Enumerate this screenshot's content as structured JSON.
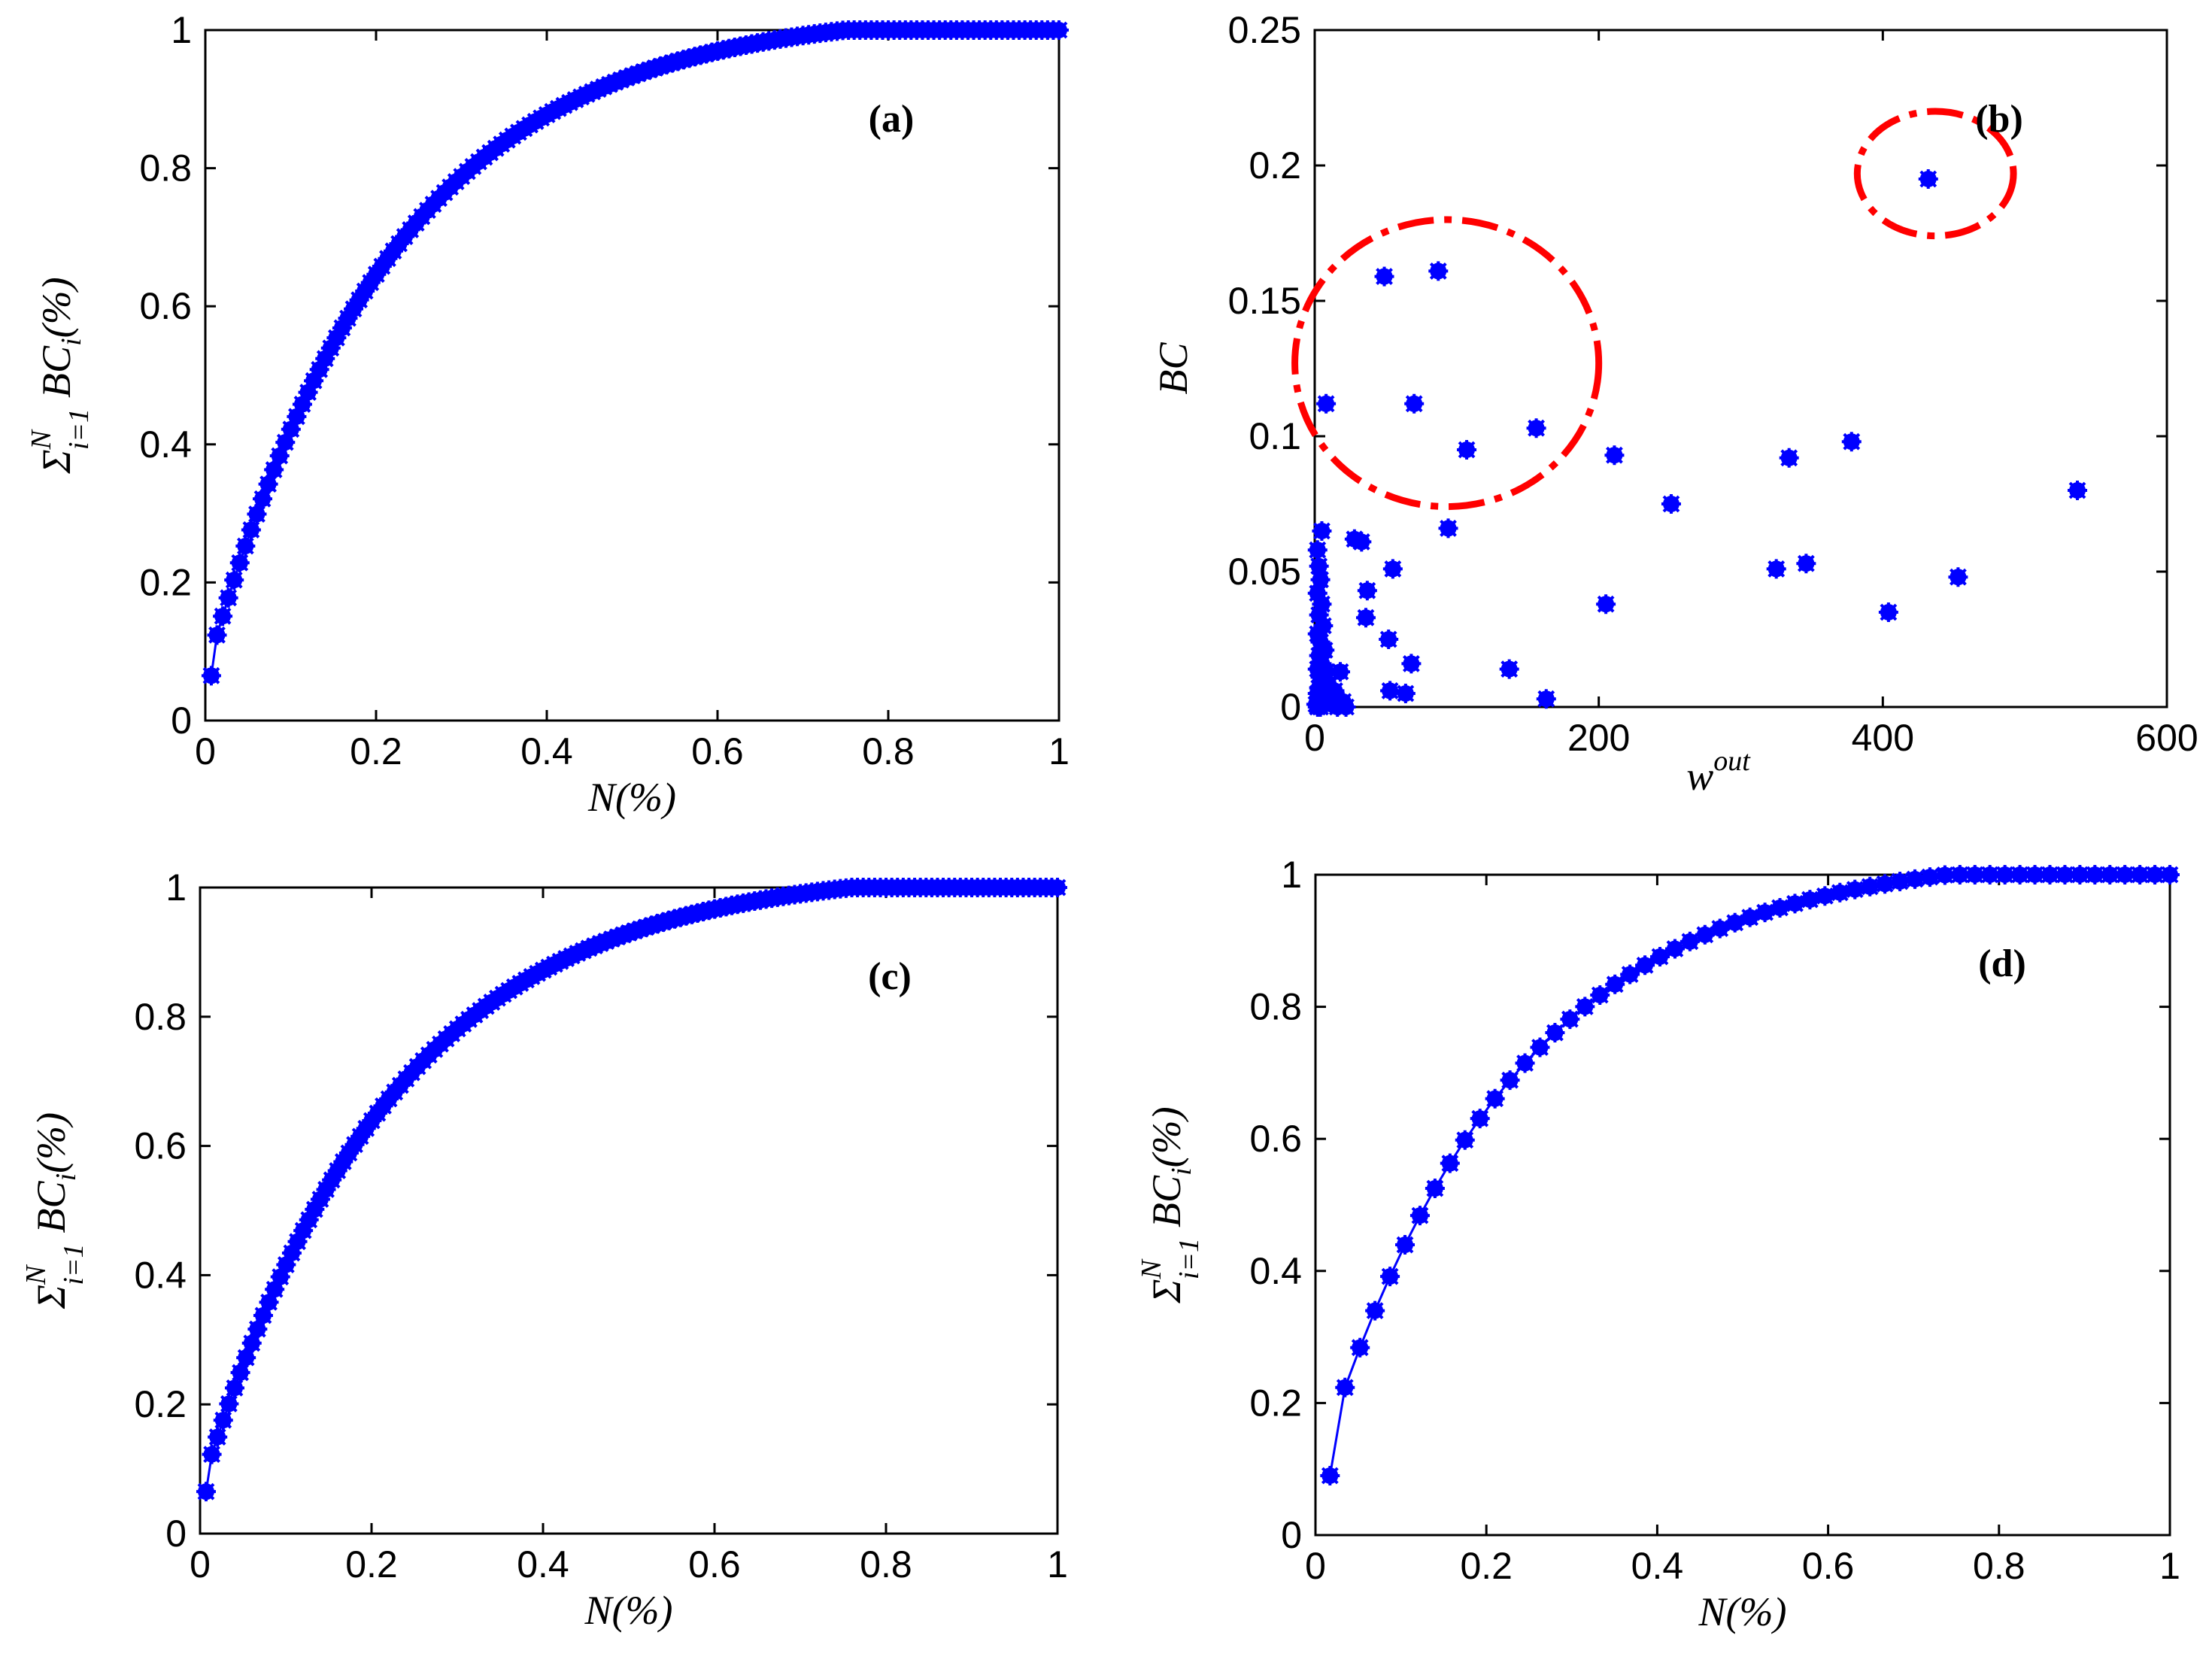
{
  "figure": {
    "description_label": ""
  },
  "chart_data": [
    {
      "type": "line",
      "panel": "(a)",
      "xlabel": "N(%)",
      "ylabel_parts": {
        "sigma": "Σ",
        "sup": "N",
        "sub": "i=1",
        "body": "BC",
        "body_sub": "i",
        "tail": "(%)"
      },
      "xlim": [
        0,
        1
      ],
      "ylim": [
        0,
        1
      ],
      "xticks": [
        0,
        0.2,
        0.4,
        0.6,
        0.8,
        1
      ],
      "yticks": [
        0,
        0.2,
        0.4,
        0.6,
        0.8,
        1
      ],
      "xtick_labels": [
        "0",
        "0.2",
        "0.4",
        "0.6",
        "0.8",
        "1"
      ],
      "ytick_labels": [
        "0",
        "0.2",
        "0.4",
        "0.6",
        "0.8",
        "1"
      ],
      "curve": {
        "n_points": 150,
        "x_start": 0.007,
        "y_start": 0.065,
        "shape_k": 4.6,
        "saturate_at": 0.75
      },
      "marker_color": "#0000ff"
    },
    {
      "type": "scatter",
      "panel": "(b)",
      "xlabel": "w",
      "xlabel_sup": "out",
      "ylabel": "BC",
      "xlim": [
        0,
        600
      ],
      "ylim": [
        0,
        0.25
      ],
      "xticks": [
        0,
        200,
        400,
        600
      ],
      "yticks": [
        0,
        0.05,
        0.1,
        0.15,
        0.2,
        0.25
      ],
      "xtick_labels": [
        "0",
        "200",
        "400",
        "600"
      ],
      "ytick_labels": [
        "0",
        "0.05",
        "0.1",
        "0.15",
        "0.2",
        "0.25"
      ],
      "points": [
        [
          432,
          0.195
        ],
        [
          87,
          0.161
        ],
        [
          49,
          0.159
        ],
        [
          8,
          0.112
        ],
        [
          70,
          0.112
        ],
        [
          107,
          0.095
        ],
        [
          156,
          0.103
        ],
        [
          211,
          0.093
        ],
        [
          334,
          0.092
        ],
        [
          378,
          0.098
        ],
        [
          251,
          0.075
        ],
        [
          537,
          0.08
        ],
        [
          94,
          0.066
        ],
        [
          325,
          0.051
        ],
        [
          346,
          0.053
        ],
        [
          453,
          0.048
        ],
        [
          404,
          0.035
        ],
        [
          205,
          0.038
        ],
        [
          5,
          0.065
        ],
        [
          28,
          0.062
        ],
        [
          33,
          0.061
        ],
        [
          55,
          0.051
        ],
        [
          37,
          0.043
        ],
        [
          36,
          0.033
        ],
        [
          52,
          0.025
        ],
        [
          68,
          0.016
        ],
        [
          137,
          0.014
        ],
        [
          53,
          0.006
        ],
        [
          64,
          0.005
        ],
        [
          163,
          0.003
        ],
        [
          2,
          0.058
        ],
        [
          3,
          0.052
        ],
        [
          4,
          0.047
        ],
        [
          2,
          0.042
        ],
        [
          5,
          0.038
        ],
        [
          3,
          0.034
        ],
        [
          6,
          0.03
        ],
        [
          2,
          0.027
        ],
        [
          4,
          0.024
        ],
        [
          7,
          0.021
        ],
        [
          3,
          0.019
        ],
        [
          5,
          0.016
        ],
        [
          2,
          0.014
        ],
        [
          8,
          0.013
        ],
        [
          18,
          0.013
        ],
        [
          4,
          0.011
        ],
        [
          6,
          0.009
        ],
        [
          10,
          0.008
        ],
        [
          3,
          0.007
        ],
        [
          14,
          0.006
        ],
        [
          2,
          0.005
        ],
        [
          5,
          0.004
        ],
        [
          9,
          0.003
        ],
        [
          20,
          0.002
        ],
        [
          3,
          0.002
        ],
        [
          7,
          0.001
        ],
        [
          12,
          0.001
        ],
        [
          1,
          0.001
        ],
        [
          4,
          0.0
        ],
        [
          16,
          0.0
        ],
        [
          22,
          0.0
        ],
        [
          2,
          0.0
        ]
      ],
      "highlight_circles": [
        {
          "cx": 93,
          "cy": 0.127,
          "rx": 107,
          "ry": 0.053
        },
        {
          "cx": 437,
          "cy": 0.197,
          "rx": 55,
          "ry": 0.023
        }
      ],
      "marker_color": "#0000ff",
      "circle_color": "#ff0000"
    },
    {
      "type": "line",
      "panel": "(c)",
      "xlabel": "N(%)",
      "ylabel_parts": {
        "sigma": "Σ",
        "sup": "N",
        "sub": "i=1",
        "body": "BC",
        "body_sub": "i",
        "tail": "(%)"
      },
      "xlim": [
        0,
        1
      ],
      "ylim": [
        0,
        1
      ],
      "xticks": [
        0,
        0.2,
        0.4,
        0.6,
        0.8,
        1
      ],
      "yticks": [
        0,
        0.2,
        0.4,
        0.6,
        0.8,
        1
      ],
      "xtick_labels": [
        "0",
        "0.2",
        "0.4",
        "0.6",
        "0.8",
        "1"
      ],
      "ytick_labels": [
        "0",
        "0.2",
        "0.4",
        "0.6",
        "0.8",
        "1"
      ],
      "curve": {
        "n_points": 150,
        "x_start": 0.007,
        "y_start": 0.065,
        "shape_k": 4.5,
        "saturate_at": 0.76
      },
      "marker_color": "#0000ff"
    },
    {
      "type": "line",
      "panel": "(d)",
      "xlabel": "N(%)",
      "ylabel_parts": {
        "sigma": "Σ",
        "sup": "N",
        "sub": "i=1",
        "body": "BC",
        "body_sub": "i",
        "tail": "(%)"
      },
      "xlim": [
        0,
        1
      ],
      "ylim": [
        0,
        1
      ],
      "xticks": [
        0,
        0.2,
        0.4,
        0.6,
        0.8,
        1
      ],
      "yticks": [
        0,
        0.2,
        0.4,
        0.6,
        0.8,
        1
      ],
      "xtick_labels": [
        "0",
        "0.2",
        "0.4",
        "0.6",
        "0.8",
        "1"
      ],
      "ytick_labels": [
        "0",
        "0.2",
        "0.4",
        "0.6",
        "0.8",
        "1"
      ],
      "curve": {
        "n_points": 57,
        "x_start": 0.017,
        "y_start": 0.09,
        "shape_k": 4.4,
        "saturate_at": 0.74
      },
      "marker_color": "#0000ff"
    }
  ]
}
